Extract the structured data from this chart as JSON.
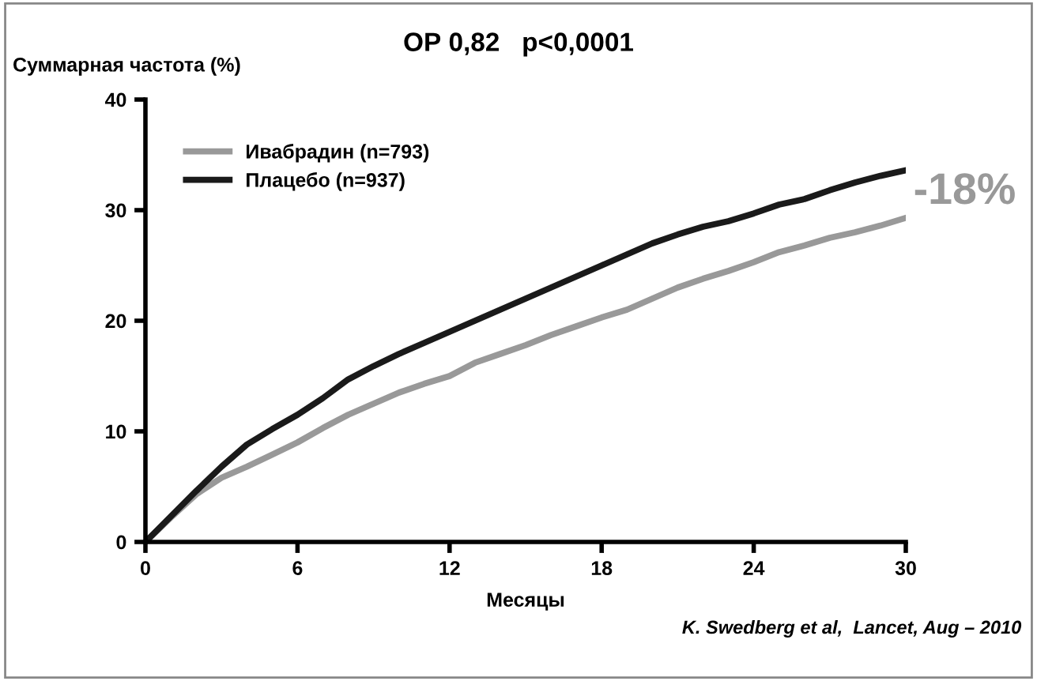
{
  "chart_data": {
    "type": "line",
    "title": "ОР 0,82   p<0,0001",
    "xlabel": "Месяцы",
    "ylabel": "Суммарная частота (%)",
    "x": [
      0,
      1,
      2,
      3,
      4,
      5,
      6,
      7,
      8,
      9,
      10,
      11,
      12,
      13,
      14,
      15,
      16,
      17,
      18,
      19,
      20,
      21,
      22,
      23,
      24,
      25,
      26,
      27,
      28,
      29,
      30
    ],
    "series": [
      {
        "name": "Ивабрадин (n=793)",
        "color": "#999999",
        "values": [
          0,
          2.2,
          4.3,
          5.8,
          6.8,
          7.9,
          9.0,
          10.3,
          11.5,
          12.5,
          13.5,
          14.3,
          15.0,
          16.2,
          17.0,
          17.8,
          18.7,
          19.5,
          20.3,
          21.0,
          22.0,
          23.0,
          23.8,
          24.5,
          25.3,
          26.2,
          26.8,
          27.5,
          28.0,
          28.6,
          29.3
        ]
      },
      {
        "name": "Плацебо (n=937)",
        "color": "#1a1a1a",
        "values": [
          0,
          2.3,
          4.6,
          6.8,
          8.8,
          10.2,
          11.5,
          13.0,
          14.7,
          15.9,
          17.0,
          18.0,
          19.0,
          20.0,
          21.0,
          22.0,
          23.0,
          24.0,
          25.0,
          26.0,
          27.0,
          27.8,
          28.5,
          29.0,
          29.7,
          30.5,
          31.0,
          31.8,
          32.5,
          33.1,
          33.6
        ]
      }
    ],
    "xlim": [
      0,
      30
    ],
    "ylim": [
      0,
      40
    ],
    "xticks": [
      0,
      6,
      12,
      18,
      24,
      30
    ],
    "yticks": [
      0,
      10,
      20,
      30,
      40
    ],
    "grid": false,
    "legend": "top left",
    "marker": "none",
    "line_style": "solid",
    "annotations": [
      "-18%",
      "K. Swedberg et al,  Lancet, Aug – 2010"
    ]
  }
}
